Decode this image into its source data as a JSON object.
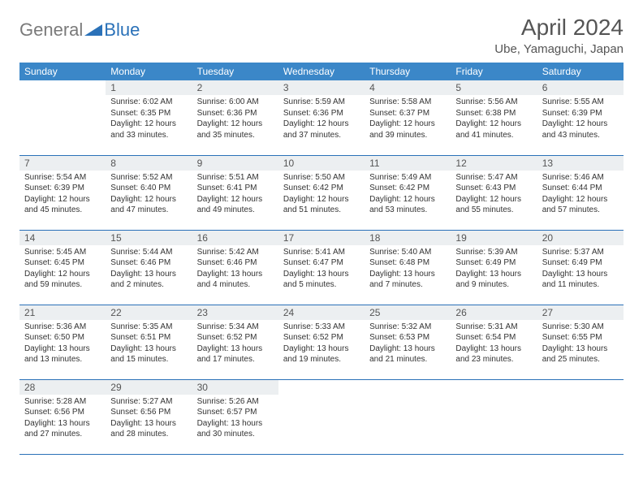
{
  "logo": {
    "text1": "General",
    "text2": "Blue"
  },
  "title": "April 2024",
  "location": "Ube, Yamaguchi, Japan",
  "colors": {
    "header_bg": "#3b87c8",
    "daynum_bg": "#eceff1",
    "row_border": "#2a71b8",
    "logo_gray": "#7a7a7a",
    "logo_blue": "#2a71b8"
  },
  "weekdays": [
    "Sunday",
    "Monday",
    "Tuesday",
    "Wednesday",
    "Thursday",
    "Friday",
    "Saturday"
  ],
  "weeks": [
    [
      null,
      {
        "n": "1",
        "sr": "6:02 AM",
        "ss": "6:35 PM",
        "dl": "12 hours and 33 minutes."
      },
      {
        "n": "2",
        "sr": "6:00 AM",
        "ss": "6:36 PM",
        "dl": "12 hours and 35 minutes."
      },
      {
        "n": "3",
        "sr": "5:59 AM",
        "ss": "6:36 PM",
        "dl": "12 hours and 37 minutes."
      },
      {
        "n": "4",
        "sr": "5:58 AM",
        "ss": "6:37 PM",
        "dl": "12 hours and 39 minutes."
      },
      {
        "n": "5",
        "sr": "5:56 AM",
        "ss": "6:38 PM",
        "dl": "12 hours and 41 minutes."
      },
      {
        "n": "6",
        "sr": "5:55 AM",
        "ss": "6:39 PM",
        "dl": "12 hours and 43 minutes."
      }
    ],
    [
      {
        "n": "7",
        "sr": "5:54 AM",
        "ss": "6:39 PM",
        "dl": "12 hours and 45 minutes."
      },
      {
        "n": "8",
        "sr": "5:52 AM",
        "ss": "6:40 PM",
        "dl": "12 hours and 47 minutes."
      },
      {
        "n": "9",
        "sr": "5:51 AM",
        "ss": "6:41 PM",
        "dl": "12 hours and 49 minutes."
      },
      {
        "n": "10",
        "sr": "5:50 AM",
        "ss": "6:42 PM",
        "dl": "12 hours and 51 minutes."
      },
      {
        "n": "11",
        "sr": "5:49 AM",
        "ss": "6:42 PM",
        "dl": "12 hours and 53 minutes."
      },
      {
        "n": "12",
        "sr": "5:47 AM",
        "ss": "6:43 PM",
        "dl": "12 hours and 55 minutes."
      },
      {
        "n": "13",
        "sr": "5:46 AM",
        "ss": "6:44 PM",
        "dl": "12 hours and 57 minutes."
      }
    ],
    [
      {
        "n": "14",
        "sr": "5:45 AM",
        "ss": "6:45 PM",
        "dl": "12 hours and 59 minutes."
      },
      {
        "n": "15",
        "sr": "5:44 AM",
        "ss": "6:46 PM",
        "dl": "13 hours and 2 minutes."
      },
      {
        "n": "16",
        "sr": "5:42 AM",
        "ss": "6:46 PM",
        "dl": "13 hours and 4 minutes."
      },
      {
        "n": "17",
        "sr": "5:41 AM",
        "ss": "6:47 PM",
        "dl": "13 hours and 5 minutes."
      },
      {
        "n": "18",
        "sr": "5:40 AM",
        "ss": "6:48 PM",
        "dl": "13 hours and 7 minutes."
      },
      {
        "n": "19",
        "sr": "5:39 AM",
        "ss": "6:49 PM",
        "dl": "13 hours and 9 minutes."
      },
      {
        "n": "20",
        "sr": "5:37 AM",
        "ss": "6:49 PM",
        "dl": "13 hours and 11 minutes."
      }
    ],
    [
      {
        "n": "21",
        "sr": "5:36 AM",
        "ss": "6:50 PM",
        "dl": "13 hours and 13 minutes."
      },
      {
        "n": "22",
        "sr": "5:35 AM",
        "ss": "6:51 PM",
        "dl": "13 hours and 15 minutes."
      },
      {
        "n": "23",
        "sr": "5:34 AM",
        "ss": "6:52 PM",
        "dl": "13 hours and 17 minutes."
      },
      {
        "n": "24",
        "sr": "5:33 AM",
        "ss": "6:52 PM",
        "dl": "13 hours and 19 minutes."
      },
      {
        "n": "25",
        "sr": "5:32 AM",
        "ss": "6:53 PM",
        "dl": "13 hours and 21 minutes."
      },
      {
        "n": "26",
        "sr": "5:31 AM",
        "ss": "6:54 PM",
        "dl": "13 hours and 23 minutes."
      },
      {
        "n": "27",
        "sr": "5:30 AM",
        "ss": "6:55 PM",
        "dl": "13 hours and 25 minutes."
      }
    ],
    [
      {
        "n": "28",
        "sr": "5:28 AM",
        "ss": "6:56 PM",
        "dl": "13 hours and 27 minutes."
      },
      {
        "n": "29",
        "sr": "5:27 AM",
        "ss": "6:56 PM",
        "dl": "13 hours and 28 minutes."
      },
      {
        "n": "30",
        "sr": "5:26 AM",
        "ss": "6:57 PM",
        "dl": "13 hours and 30 minutes."
      },
      null,
      null,
      null,
      null
    ]
  ]
}
